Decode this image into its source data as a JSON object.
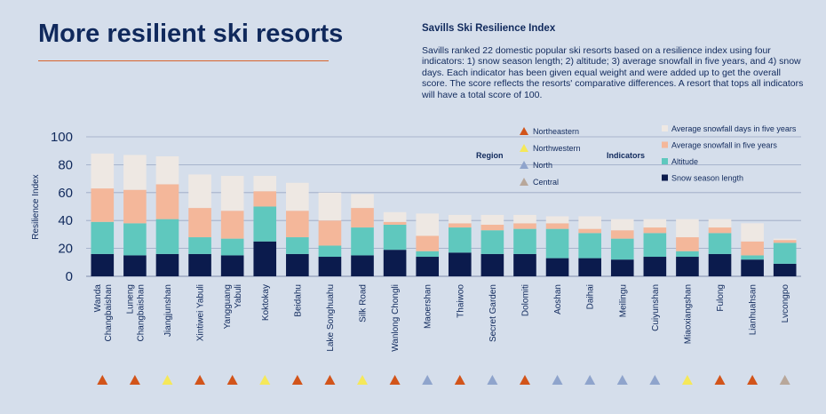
{
  "header": {
    "title": "More resilient ski resorts"
  },
  "info": {
    "heading": "Savills Ski Resilience Index",
    "body": "Savills ranked 22 domestic popular ski resorts based on a resilience index using four indicators: 1) snow season length; 2) altitude; 3) average snowfall in five years, and 4) snow days. Each indicator has been given equal weight and were added up to get the overall score. The score reflects the resorts' comparative differences. A resort that tops all indicators will have a total score of 100."
  },
  "legend": {
    "region_heading": "Region",
    "regions": [
      {
        "name": "Northeastern",
        "color": "#d2541a"
      },
      {
        "name": "Northwestern",
        "color": "#f5e85a"
      },
      {
        "name": "North",
        "color": "#8fa4cc"
      },
      {
        "name": "Central",
        "color": "#b8a79a"
      }
    ],
    "indicators_heading": "Indicators",
    "indicators": [
      {
        "name": "Average snowfall days in five years",
        "color": "#eee8e3"
      },
      {
        "name": "Average snowfall in five years",
        "color": "#f4b79a"
      },
      {
        "name": "Altitude",
        "color": "#5fc8be"
      },
      {
        "name": "Snow season length",
        "color": "#0b1b4d"
      }
    ]
  },
  "chart_data": {
    "type": "bar",
    "stacked": true,
    "ylabel": "Resilience Index",
    "ylim": [
      0,
      100
    ],
    "yticks": [
      0,
      20,
      40,
      60,
      80,
      100
    ],
    "grid": true,
    "categories": [
      "Wanda\nChangbaishan",
      "Luneng\nChangbaishan",
      "Jiangjunshan",
      "Xintiwei Yabuli",
      "Yangguang\nYabuli",
      "Koktokay",
      "Beidahu",
      "Lake Songhuahu",
      "Silk Road",
      "Wanlong Chongli",
      "Maoershan",
      "Thaiwoo",
      "Secret Garden",
      "Dolomiti",
      "Aoshan",
      "Daihai",
      "Meilingu",
      "Cuiyunshan",
      "Miaoxiangshan",
      "Fulong",
      "Lianhuahsan",
      "Lvcongpo"
    ],
    "regions": [
      "Northeastern",
      "Northeastern",
      "Northwestern",
      "Northeastern",
      "Northeastern",
      "Northwestern",
      "Northeastern",
      "Northeastern",
      "Northwestern",
      "Northeastern",
      "North",
      "Northeastern",
      "North",
      "Northeastern",
      "North",
      "North",
      "North",
      "North",
      "Northwestern",
      "Northeastern",
      "Northeastern",
      "Central"
    ],
    "series": [
      {
        "name": "Snow season length",
        "color": "#0b1b4d",
        "values": [
          16,
          15,
          16,
          16,
          15,
          25,
          16,
          14,
          15,
          19,
          14,
          17,
          16,
          16,
          13,
          13,
          12,
          14,
          14,
          16,
          12,
          9
        ]
      },
      {
        "name": "Altitude",
        "color": "#5fc8be",
        "values": [
          23,
          23,
          25,
          12,
          12,
          25,
          12,
          8,
          20,
          18,
          4,
          18,
          17,
          18,
          21,
          18,
          15,
          17,
          4,
          15,
          3,
          15
        ]
      },
      {
        "name": "Average snowfall in five years",
        "color": "#f4b79a",
        "values": [
          24,
          24,
          25,
          21,
          20,
          11,
          19,
          18,
          14,
          2,
          11,
          3,
          4,
          4,
          4,
          3,
          6,
          4,
          10,
          4,
          10,
          2
        ]
      },
      {
        "name": "Average snowfall days in five years",
        "color": "#eee8e3",
        "values": [
          25,
          25,
          20,
          24,
          25,
          11,
          20,
          20,
          10,
          7,
          16,
          6,
          7,
          6,
          5,
          9,
          8,
          6,
          13,
          6,
          13,
          1
        ]
      }
    ]
  }
}
